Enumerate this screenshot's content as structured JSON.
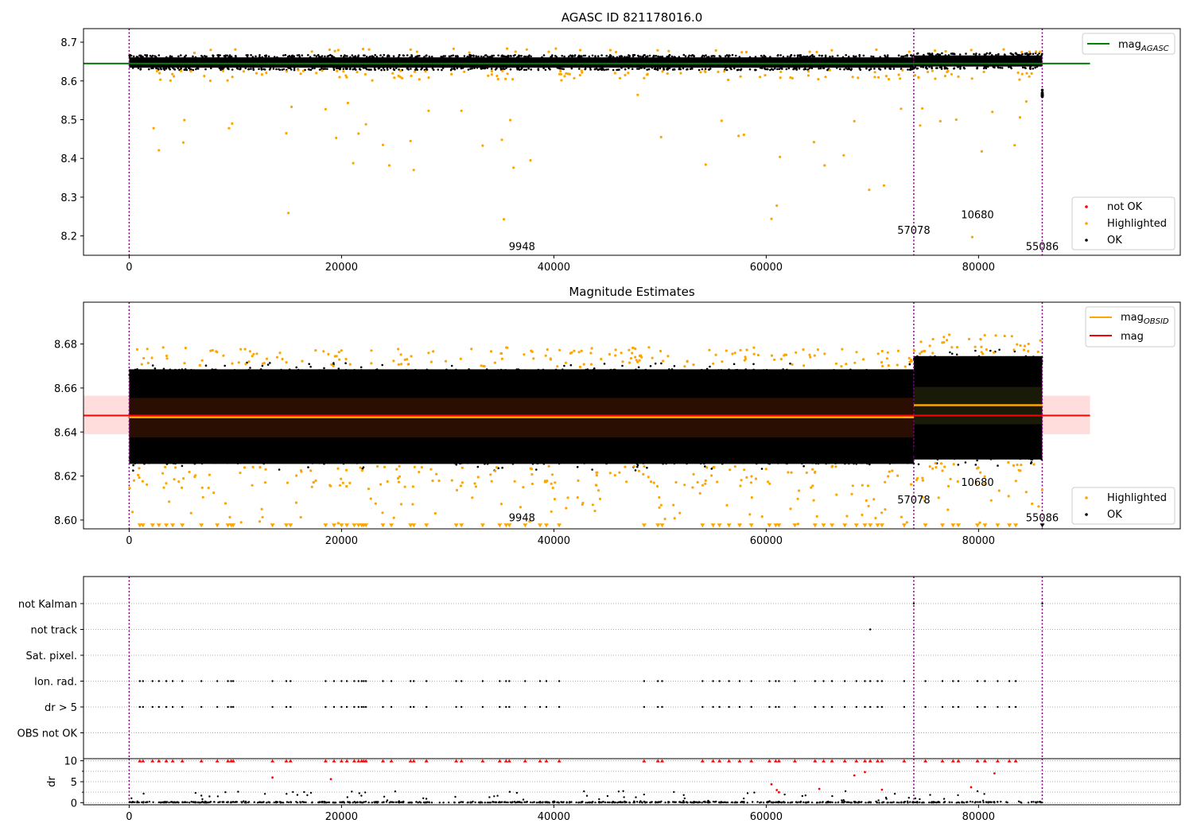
{
  "chart_data": [
    {
      "type": "scatter",
      "title": "AGASC ID 821178016.0",
      "xlabel": "",
      "ylabel": "",
      "xlim": [
        -4300,
        99000
      ],
      "ylim": [
        8.15,
        8.735
      ],
      "x_ticks": [
        0,
        20000,
        40000,
        60000,
        80000
      ],
      "x_tick_labels": [
        "0",
        "20000",
        "40000",
        "60000",
        "80000"
      ],
      "y_ticks": [
        8.2,
        8.3,
        8.4,
        8.5,
        8.6,
        8.7
      ],
      "y_tick_labels": [
        "8.2",
        "8.3",
        "8.4",
        "8.5",
        "8.6",
        "8.7"
      ],
      "obsid_boundaries": [
        0,
        73900,
        86000
      ],
      "obsid_labels": [
        {
          "text": "9948",
          "x": 37000,
          "y": 8.163
        },
        {
          "text": "57078",
          "x": 73900,
          "y": 8.205
        },
        {
          "text": "10680",
          "x": 79900,
          "y": 8.245
        },
        {
          "text": "55086",
          "x": 86000,
          "y": 8.163
        }
      ],
      "mag_agasc": 8.645,
      "mag_agasc_xrange": [
        -4300,
        90500
      ],
      "ok_band": [
        {
          "x0": 0,
          "x1": 73900,
          "low": 8.628,
          "high": 8.667
        },
        {
          "x0": 73900,
          "x1": 86000,
          "low": 8.631,
          "high": 8.672
        }
      ],
      "legend_lines": [
        "mag$_{AGASC}$"
      ],
      "legend_lines_placement": "upper right",
      "legend_markers": [
        "not OK",
        "Highlighted",
        "OK"
      ],
      "legend_markers_placement": "lower right",
      "series": [
        {
          "name": "mag_AGASC",
          "color": "#008000"
        },
        {
          "name": "not OK",
          "color": "#ff0000"
        },
        {
          "name": "Highlighted",
          "color": "#ffa500"
        },
        {
          "name": "OK",
          "color": "#000000"
        }
      ],
      "highlighted_outliers": [
        [
          2300,
          8.478
        ],
        [
          2800,
          8.421
        ],
        [
          5100,
          8.441
        ],
        [
          5200,
          8.499
        ],
        [
          9400,
          8.478
        ],
        [
          9700,
          8.49
        ],
        [
          14800,
          8.465
        ],
        [
          15000,
          8.259
        ],
        [
          15300,
          8.533
        ],
        [
          18500,
          8.527
        ],
        [
          19500,
          8.453
        ],
        [
          20600,
          8.543
        ],
        [
          21100,
          8.388
        ],
        [
          21600,
          8.464
        ],
        [
          22300,
          8.488
        ],
        [
          23900,
          8.435
        ],
        [
          24500,
          8.382
        ],
        [
          26500,
          8.445
        ],
        [
          26800,
          8.37
        ],
        [
          28200,
          8.523
        ],
        [
          31300,
          8.523
        ],
        [
          33300,
          8.433
        ],
        [
          35100,
          8.448
        ],
        [
          35300,
          8.243
        ],
        [
          35900,
          8.499
        ],
        [
          36200,
          8.376
        ],
        [
          37800,
          8.395
        ],
        [
          47900,
          8.564
        ],
        [
          50100,
          8.455
        ],
        [
          54300,
          8.384
        ],
        [
          55800,
          8.497
        ],
        [
          57400,
          8.458
        ],
        [
          57900,
          8.461
        ],
        [
          60500,
          8.244
        ],
        [
          61000,
          8.278
        ],
        [
          61300,
          8.404
        ],
        [
          64500,
          8.442
        ],
        [
          65500,
          8.382
        ],
        [
          67300,
          8.408
        ],
        [
          68300,
          8.496
        ],
        [
          69700,
          8.319
        ],
        [
          71100,
          8.33
        ],
        [
          72700,
          8.528
        ],
        [
          74700,
          8.529
        ],
        [
          74500,
          8.485
        ],
        [
          76400,
          8.496
        ],
        [
          77900,
          8.5
        ],
        [
          78100,
          8.611
        ],
        [
          79400,
          8.197
        ],
        [
          80300,
          8.418
        ],
        [
          81300,
          8.52
        ],
        [
          83400,
          8.434
        ],
        [
          83900,
          8.506
        ],
        [
          84500,
          8.547
        ]
      ]
    },
    {
      "type": "scatter",
      "title": "Magnitude Estimates",
      "xlabel": "",
      "ylabel": "",
      "xlim": [
        -4300,
        99000
      ],
      "ylim": [
        8.596,
        8.699
      ],
      "x_ticks": [
        0,
        20000,
        40000,
        60000,
        80000
      ],
      "x_tick_labels": [
        "0",
        "20000",
        "40000",
        "60000",
        "80000"
      ],
      "y_ticks": [
        8.6,
        8.62,
        8.64,
        8.66,
        8.68
      ],
      "y_tick_labels": [
        "8.60",
        "8.62",
        "8.64",
        "8.66",
        "8.68"
      ],
      "obsid_boundaries": [
        0,
        73900,
        86000
      ],
      "obsid_labels": [
        {
          "text": "9948",
          "x": 37000,
          "y": 8.5995
        },
        {
          "text": "57078",
          "x": 73900,
          "y": 8.6075
        },
        {
          "text": "10680",
          "x": 79900,
          "y": 8.6155
        },
        {
          "text": "55086",
          "x": 86000,
          "y": 8.5995
        }
      ],
      "mag": 8.6475,
      "mag_xrange": [
        -4300,
        90500
      ],
      "mag_band": [
        8.639,
        8.6565
      ],
      "mag_obsid": [
        {
          "x0": 0,
          "x1": 73900,
          "value": 8.6467,
          "low": 8.6375,
          "high": 8.6555
        },
        {
          "x0": 73900,
          "x1": 86000,
          "value": 8.6522,
          "low": 8.6435,
          "high": 8.6605
        }
      ],
      "ok_band": [
        {
          "x0": 0,
          "x1": 73900,
          "low": 8.6255,
          "high": 8.6685
        },
        {
          "x0": 73900,
          "x1": 86000,
          "low": 8.6275,
          "high": 8.6745
        }
      ],
      "legend_lines": [
        "mag$_{OBSID}$",
        "mag"
      ],
      "legend_lines_placement": "upper right",
      "legend_markers": [
        "Highlighted",
        "OK"
      ],
      "legend_markers_placement": "lower right",
      "series": [
        {
          "name": "mag_OBSID",
          "color": "#ffa500"
        },
        {
          "name": "mag",
          "color": "#ff0000"
        },
        {
          "name": "Highlighted",
          "color": "#ffa500"
        },
        {
          "name": "OK",
          "color": "#000000"
        }
      ]
    },
    {
      "type": "scatter",
      "title": "",
      "xlabel": "",
      "ylabel": "",
      "xlim": [
        -4300,
        99000
      ],
      "x_ticks": [
        0,
        20000,
        40000,
        60000,
        80000
      ],
      "x_tick_labels": [],
      "flag_categories": [
        "not Kalman",
        "not track",
        "Sat. pixel.",
        "Ion. rad.",
        "dr > 5",
        "OBS not OK"
      ],
      "obsid_boundaries": [
        0,
        73900,
        86000
      ],
      "flags": [
        {
          "category": "not Kalman",
          "x": [
            73900,
            86000
          ]
        },
        {
          "category": "not track",
          "x": [
            69800
          ]
        },
        {
          "category": "Ion. rad.",
          "x": [
            1000,
            1300,
            2200,
            2800,
            3500,
            4100,
            5000,
            6800,
            8300,
            9300,
            9600,
            9800,
            13500,
            14800,
            15200,
            18500,
            19300,
            20000,
            20500,
            21200,
            21600,
            21900,
            22100,
            22300,
            23900,
            24700,
            26500,
            26800,
            28000,
            30800,
            31300,
            33300,
            34900,
            35500,
            35800,
            37300,
            38700,
            39300,
            40500,
            48500,
            49800,
            50200,
            54000,
            55000,
            55600,
            56500,
            57500,
            58600,
            60300,
            60900,
            61200,
            62700,
            64600,
            65400,
            66200,
            67400,
            68500,
            69300,
            69800,
            70500,
            70900,
            73000,
            75000,
            76600,
            77600,
            78100,
            79900,
            80600,
            81800,
            82900,
            83500
          ]
        },
        {
          "category": "dr > 5",
          "x": [
            1000,
            1300,
            2200,
            2800,
            3500,
            4100,
            5000,
            6800,
            8300,
            9300,
            9600,
            9800,
            13500,
            14800,
            15200,
            18500,
            19300,
            20000,
            20500,
            21200,
            21600,
            21900,
            22100,
            22300,
            23900,
            24700,
            26500,
            26800,
            28000,
            30800,
            31300,
            33300,
            34900,
            35500,
            35800,
            37300,
            38700,
            39300,
            40500,
            48500,
            49800,
            50200,
            54000,
            55000,
            55600,
            56500,
            57500,
            58600,
            60300,
            60900,
            61200,
            62700,
            64600,
            65400,
            66200,
            67400,
            68500,
            69300,
            69800,
            70500,
            70900,
            73000,
            75000,
            76600,
            77600,
            78100,
            79900,
            80600,
            81800,
            82900,
            83500
          ]
        }
      ]
    },
    {
      "type": "scatter",
      "title": "",
      "xlabel": "",
      "ylabel": "dr",
      "xlim": [
        -4300,
        99000
      ],
      "ylim": [
        -0.5,
        10.5
      ],
      "x_ticks": [
        0,
        20000,
        40000,
        60000,
        80000
      ],
      "x_tick_labels": [
        "0",
        "20000",
        "40000",
        "60000",
        "80000"
      ],
      "y_ticks": [
        0,
        5,
        10
      ],
      "y_tick_labels": [
        "0",
        "5",
        "10"
      ],
      "obsid_boundaries": [
        0,
        73900,
        86000
      ],
      "clipped_value": 10,
      "red_points": [
        [
          13500,
          6.0
        ],
        [
          19000,
          5.6
        ],
        [
          60500,
          4.4
        ],
        [
          61000,
          3.0
        ],
        [
          61200,
          2.5
        ],
        [
          65000,
          3.3
        ],
        [
          68300,
          6.5
        ],
        [
          69300,
          7.3
        ],
        [
          70900,
          3.1
        ],
        [
          79300,
          3.7
        ],
        [
          81500,
          7.0
        ]
      ]
    }
  ]
}
